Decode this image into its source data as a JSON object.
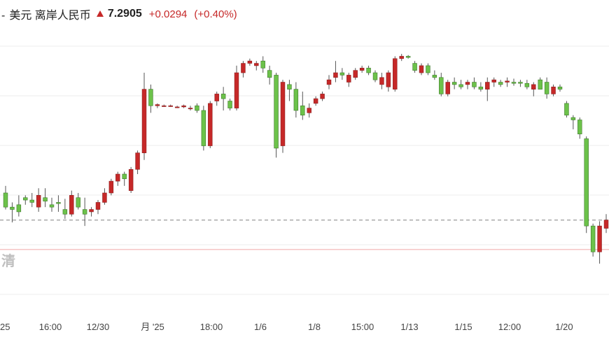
{
  "header": {
    "separator": "-",
    "base": "美元",
    "quote": "离岸人民币",
    "price": "7.2905",
    "change": "+0.0294",
    "change_pct": "(+0.40%)",
    "trend_icon": "up-arrow-icon"
  },
  "watermark": "清",
  "colors": {
    "up": "#c62828",
    "down": "#6cc24a",
    "reference_line": "#f0a8a8",
    "dashed_line": "#999999"
  },
  "chart_data": {
    "type": "candlestick",
    "x_ticks": [
      "25",
      "16:00",
      "12/30",
      "月 '25",
      "18:00",
      "1/6",
      "1/8",
      "15:00",
      "1/13",
      "1/15",
      "12:00",
      "1/20"
    ],
    "reference_lines": [
      {
        "style": "dashed",
        "value": 7.2905
      },
      {
        "style": "solid",
        "value": 7.278
      }
    ],
    "ylim": [
      7.248,
      7.372
    ],
    "candles": [
      [
        7.302,
        7.305,
        7.295,
        7.296
      ],
      [
        7.296,
        7.298,
        7.2895,
        7.295
      ],
      [
        7.297,
        7.301,
        7.292,
        7.294
      ],
      [
        7.3,
        7.301,
        7.297,
        7.299
      ],
      [
        7.299,
        7.302,
        7.296,
        7.298
      ],
      [
        7.296,
        7.304,
        7.294,
        7.301
      ],
      [
        7.3,
        7.304,
        7.296,
        7.2985
      ],
      [
        7.297,
        7.3,
        7.294,
        7.296
      ],
      [
        7.298,
        7.301,
        7.294,
        7.2975
      ],
      [
        7.295,
        7.2995,
        7.291,
        7.293
      ],
      [
        7.293,
        7.303,
        7.292,
        7.301
      ],
      [
        7.3,
        7.302,
        7.295,
        7.296
      ],
      [
        7.295,
        7.3,
        7.288,
        7.293
      ],
      [
        7.294,
        7.296,
        7.292,
        7.295
      ],
      [
        7.295,
        7.299,
        7.293,
        7.298
      ],
      [
        7.298,
        7.304,
        7.297,
        7.302
      ],
      [
        7.302,
        7.308,
        7.301,
        7.307
      ],
      [
        7.307,
        7.311,
        7.305,
        7.31
      ],
      [
        7.31,
        7.311,
        7.305,
        7.308
      ],
      [
        7.303,
        7.313,
        7.302,
        7.312
      ],
      [
        7.312,
        7.32,
        7.31,
        7.319
      ],
      [
        7.319,
        7.353,
        7.316,
        7.346
      ],
      [
        7.346,
        7.348,
        7.336,
        7.339
      ],
      [
        7.339,
        7.34,
        7.338,
        7.3395
      ],
      [
        7.339,
        7.3395,
        7.3385,
        7.339
      ],
      [
        7.339,
        7.3395,
        7.3385,
        7.339
      ],
      [
        7.3385,
        7.339,
        7.338,
        7.3385
      ],
      [
        7.3385,
        7.3395,
        7.338,
        7.339
      ],
      [
        7.338,
        7.339,
        7.337,
        7.338
      ],
      [
        7.339,
        7.34,
        7.336,
        7.337
      ],
      [
        7.337,
        7.339,
        7.32,
        7.322
      ],
      [
        7.322,
        7.341,
        7.321,
        7.34
      ],
      [
        7.341,
        7.345,
        7.339,
        7.344
      ],
      [
        7.344,
        7.347,
        7.337,
        7.342
      ],
      [
        7.341,
        7.342,
        7.337,
        7.338
      ],
      [
        7.338,
        7.356,
        7.337,
        7.353
      ],
      [
        7.353,
        7.358,
        7.351,
        7.357
      ],
      [
        7.357,
        7.359,
        7.356,
        7.358
      ],
      [
        7.356,
        7.358,
        7.354,
        7.357
      ],
      [
        7.358,
        7.36,
        7.353,
        7.355
      ],
      [
        7.354,
        7.356,
        7.348,
        7.351
      ],
      [
        7.352,
        7.353,
        7.317,
        7.321
      ],
      [
        7.322,
        7.35,
        7.319,
        7.349
      ],
      [
        7.348,
        7.35,
        7.341,
        7.346
      ],
      [
        7.346,
        7.349,
        7.334,
        7.337
      ],
      [
        7.339,
        7.345,
        7.333,
        7.335
      ],
      [
        7.336,
        7.34,
        7.334,
        7.338
      ],
      [
        7.34,
        7.343,
        7.339,
        7.342
      ],
      [
        7.342,
        7.345,
        7.341,
        7.344
      ],
      [
        7.348,
        7.352,
        7.346,
        7.35
      ],
      [
        7.351,
        7.358,
        7.349,
        7.353
      ],
      [
        7.353,
        7.355,
        7.35,
        7.352
      ],
      [
        7.349,
        7.353,
        7.347,
        7.352
      ],
      [
        7.351,
        7.355,
        7.35,
        7.354
      ],
      [
        7.354,
        7.356,
        7.353,
        7.355
      ],
      [
        7.355,
        7.356,
        7.352,
        7.353
      ],
      [
        7.353,
        7.354,
        7.349,
        7.35
      ],
      [
        7.348,
        7.353,
        7.346,
        7.351
      ],
      [
        7.347,
        7.354,
        7.345,
        7.353
      ],
      [
        7.346,
        7.36,
        7.345,
        7.359
      ],
      [
        7.359,
        7.361,
        7.358,
        7.36
      ],
      [
        7.36,
        7.3605,
        7.359,
        7.3595
      ],
      [
        7.357,
        7.358,
        7.353,
        7.354
      ],
      [
        7.353,
        7.357,
        7.352,
        7.356
      ],
      [
        7.356,
        7.357,
        7.352,
        7.353
      ],
      [
        7.352,
        7.354,
        7.35,
        7.351
      ],
      [
        7.351,
        7.353,
        7.343,
        7.344
      ],
      [
        7.344,
        7.35,
        7.343,
        7.349
      ],
      [
        7.349,
        7.351,
        7.346,
        7.348
      ],
      [
        7.348,
        7.35,
        7.346,
        7.347
      ],
      [
        7.348,
        7.35,
        7.346,
        7.349
      ],
      [
        7.349,
        7.351,
        7.346,
        7.347
      ],
      [
        7.347,
        7.349,
        7.345,
        7.346
      ],
      [
        7.346,
        7.351,
        7.341,
        7.349
      ],
      [
        7.349,
        7.351,
        7.347,
        7.35
      ],
      [
        7.349,
        7.35,
        7.347,
        7.348
      ],
      [
        7.349,
        7.351,
        7.347,
        7.3495
      ],
      [
        7.349,
        7.3505,
        7.3475,
        7.3485
      ],
      [
        7.349,
        7.35,
        7.347,
        7.3485
      ],
      [
        7.3485,
        7.35,
        7.346,
        7.347
      ],
      [
        7.346,
        7.349,
        7.343,
        7.348
      ],
      [
        7.35,
        7.351,
        7.346,
        7.346
      ],
      [
        7.349,
        7.351,
        7.342,
        7.344
      ],
      [
        7.344,
        7.348,
        7.343,
        7.347
      ],
      [
        7.347,
        7.348,
        7.345,
        7.346
      ],
      [
        7.34,
        7.341,
        7.334,
        7.335
      ],
      [
        7.334,
        7.335,
        7.329,
        7.333
      ],
      [
        7.333,
        7.334,
        7.325,
        7.327
      ],
      [
        7.325,
        7.326,
        7.285,
        7.288
      ],
      [
        7.288,
        7.289,
        7.275,
        7.277
      ],
      [
        7.277,
        7.29,
        7.272,
        7.288
      ],
      [
        7.287,
        7.293,
        7.285,
        7.2905
      ]
    ]
  }
}
